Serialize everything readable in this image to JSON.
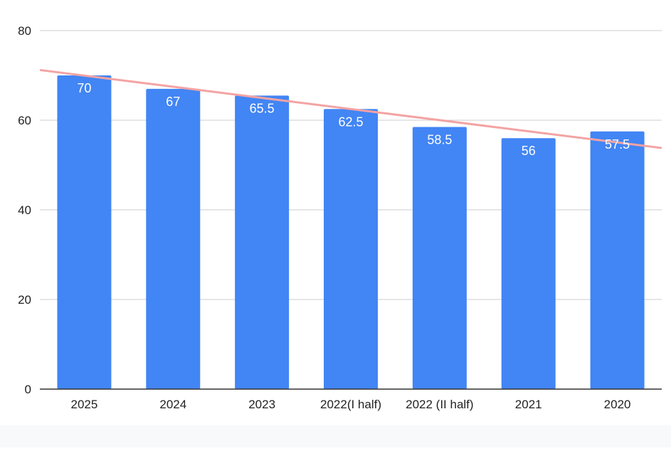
{
  "chart_data": {
    "type": "bar",
    "title": "",
    "xlabel": "",
    "ylabel": "",
    "categories": [
      "2025",
      "2024",
      "2023",
      "2022(I half)",
      "2022 (II half)",
      "2021",
      "2020"
    ],
    "values": [
      70,
      67,
      65.5,
      62.5,
      58.5,
      56,
      57.5
    ],
    "data_labels": [
      "70",
      "67",
      "65.5",
      "62.5",
      "58.5",
      "56",
      "57.5"
    ],
    "ylim": [
      0,
      80
    ],
    "yticks": [
      "0",
      "20",
      "40",
      "60",
      "80"
    ],
    "grid": true,
    "legend": "none",
    "trendline": {
      "type": "linear",
      "start_value": 71.2,
      "end_value": 53.8
    },
    "colors": {
      "bar": "#4285f4",
      "trendline": "#f4a3a3",
      "grid": "#cccccc",
      "axis": "#333333",
      "data_label": "#ffffff",
      "tick_label": "#222222"
    }
  }
}
